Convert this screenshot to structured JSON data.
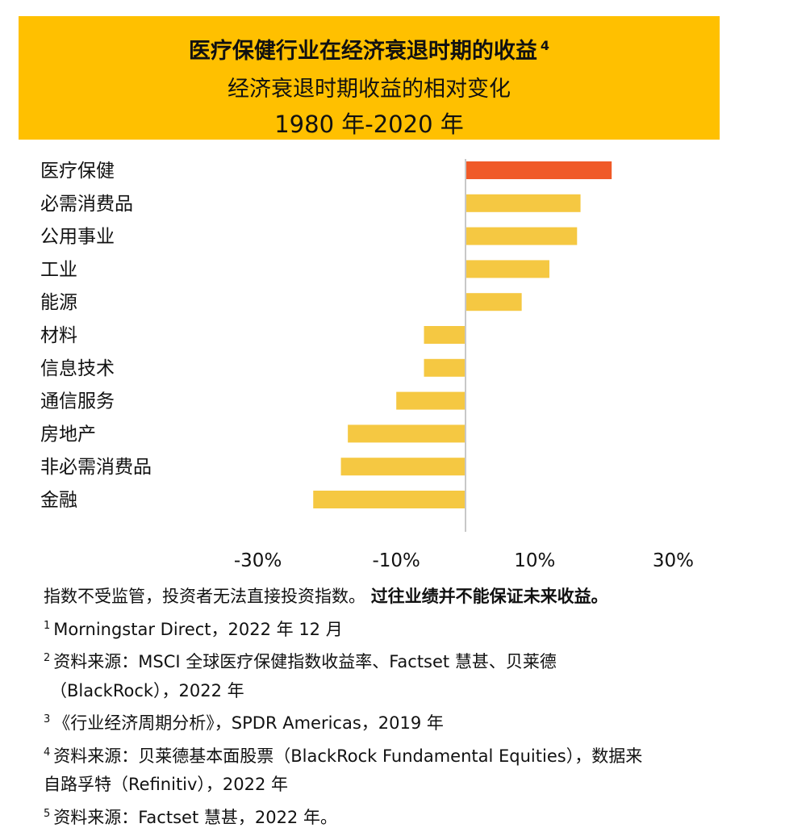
{
  "header": {
    "title": "医疗保健行业在经济衰退时期的收益",
    "title_note": "4",
    "subtitle": "经济衰退时期收益的相对变化",
    "period": "1980 年-2020 年"
  },
  "colors": {
    "header_bg": "#FFC000",
    "highlight_bar": "#F05A28",
    "bar": "#F5C842",
    "axis": "#c8c8c8"
  },
  "chart_data": {
    "type": "bar",
    "orientation": "horizontal",
    "categories": [
      "医疗保健",
      "必需消费品",
      "公用事业",
      "工业",
      "能源",
      "材料",
      "信息技术",
      "通信服务",
      "房地产",
      "非必需消费品",
      "金融"
    ],
    "values": [
      21,
      16.5,
      16,
      12,
      8,
      -6,
      -6,
      -10,
      -17,
      -18,
      -22
    ],
    "highlight": "医疗保健",
    "x_ticks": [
      "-30%",
      "-10%",
      "10%",
      "30%"
    ],
    "x_tick_values": [
      -30,
      -10,
      10,
      30
    ],
    "xlim": [
      -40,
      40
    ]
  },
  "footnotes": {
    "disclaimer": "指数不受监管，投资者无法直接投资指数。",
    "disclaimer_bold": "过往业绩并不能保证未来收益。",
    "notes": [
      {
        "num": "1",
        "text": "Morningstar Direct，2022 年 12 月"
      },
      {
        "num": "2",
        "text": "资料来源：MSCI 全球医疗保健指数收益率、Factset 慧甚、贝莱德",
        "cont": "（BlackRock），2022 年"
      },
      {
        "num": "3",
        "text": "《行业经济周期分析》，SPDR Americas，2019 年"
      },
      {
        "num": "4",
        "text": "资料来源：贝莱德基本面股票（BlackRock Fundamental Equities），数据来",
        "cont": "自路孚特（Refinitiv），2022 年"
      },
      {
        "num": "5",
        "text": "资料来源：Factset 慧甚，2022 年。"
      }
    ]
  }
}
